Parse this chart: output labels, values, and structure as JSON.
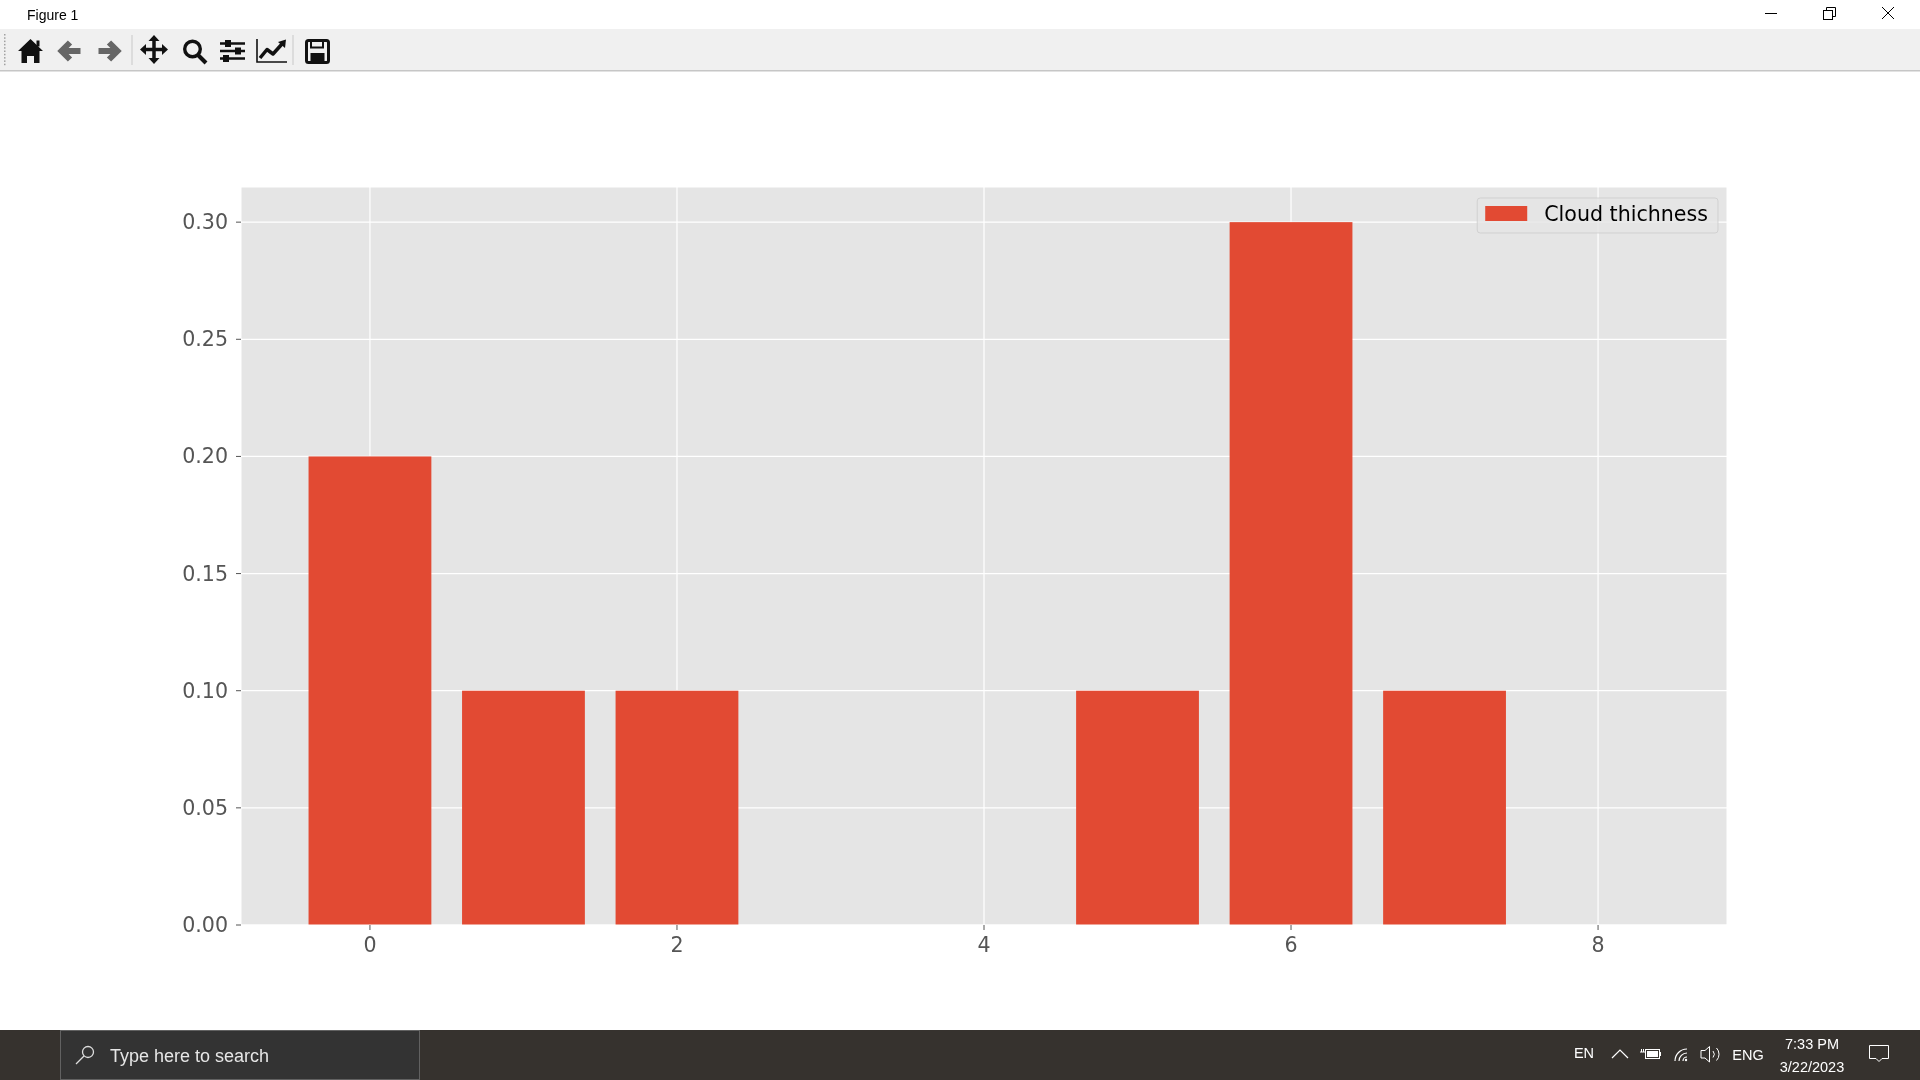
{
  "chart_data": {
    "type": "bar",
    "x": [
      0,
      1,
      2,
      5,
      6,
      7
    ],
    "series": [
      {
        "name": "Cloud thichness",
        "color": "#e24a33",
        "values": [
          0.2,
          0.1,
          0.1,
          0.1,
          0.3,
          0.1
        ]
      }
    ],
    "xlim": [
      -0.84,
      8.84
    ],
    "xticks": [
      0,
      2,
      4,
      6,
      8
    ],
    "ylim": [
      0,
      0.315
    ],
    "yticks": [
      {
        "value": 0,
        "label": "0.00"
      },
      0.05,
      {
        "value": 0.1,
        "label": "0.10"
      },
      0.15,
      {
        "value": 0.2,
        "label": "0.20"
      },
      0.25,
      {
        "value": 0.3,
        "label": "0.30"
      }
    ],
    "grid": true,
    "legend": "top right",
    "annotations": [
      "Figure 1",
      "Type here to search",
      "EN",
      "ENG",
      "7:33 PM",
      "3/22/2023"
    ]
  }
}
